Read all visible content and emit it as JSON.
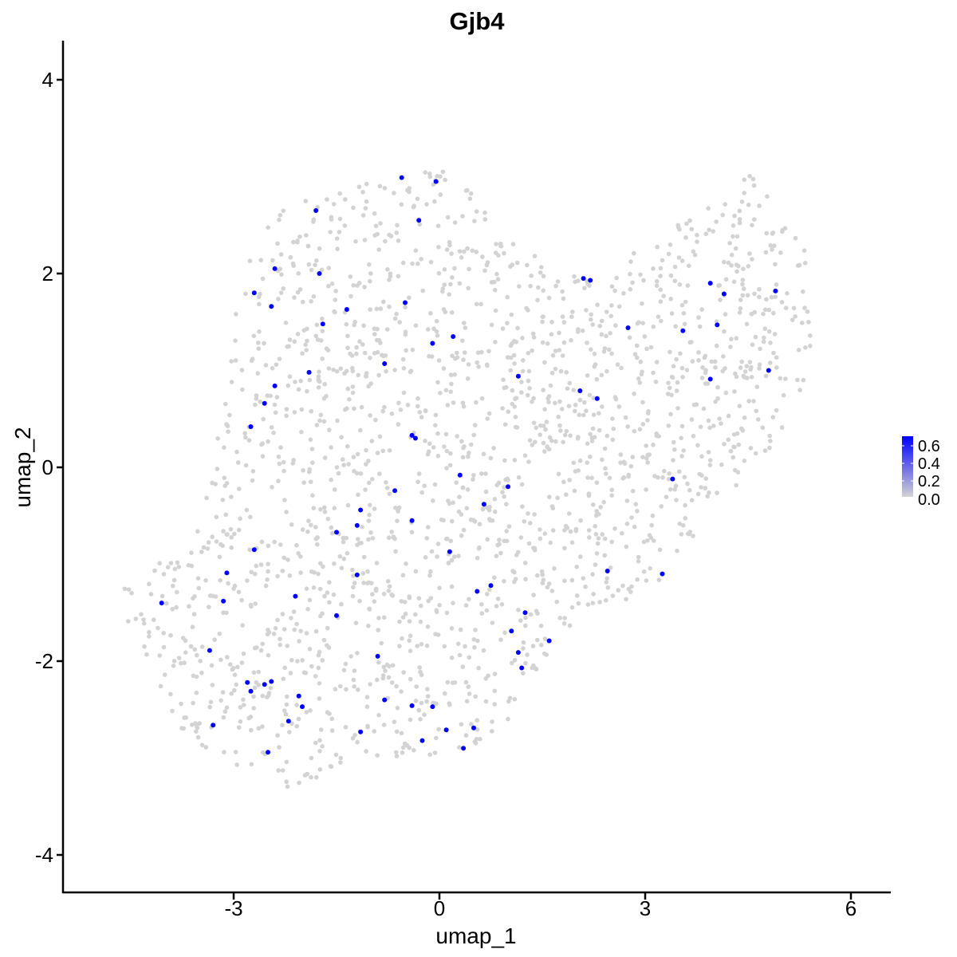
{
  "chart_data": {
    "type": "scatter",
    "title": "Gjb4",
    "xlabel": "umap_1",
    "ylabel": "umap_2",
    "xlim": [
      -5.9,
      6.5
    ],
    "ylim": [
      -4.4,
      4.4
    ],
    "x_ticks": [
      {
        "value": -3,
        "label": "-3"
      },
      {
        "value": 0,
        "label": "0"
      },
      {
        "value": 3,
        "label": "3"
      },
      {
        "value": 6,
        "label": "6"
      }
    ],
    "y_ticks": [
      {
        "value": -4,
        "label": "-4"
      },
      {
        "value": -2,
        "label": "-2"
      },
      {
        "value": 0,
        "label": "0"
      },
      {
        "value": 2,
        "label": "2"
      },
      {
        "value": 4,
        "label": "4"
      }
    ],
    "grid": false,
    "legend": {
      "position": "right",
      "type": "colorbar",
      "labels": [
        "0.6",
        "0.4",
        "0.2",
        "0.0"
      ],
      "range": [
        0.0,
        0.65
      ],
      "low_color": "#d3d3d3",
      "high_color": "#0000ff"
    },
    "background_points_color": "#d3d3d3",
    "background_region": {
      "note_free": true,
      "polygon": [
        [
          -4.7,
          -1.3
        ],
        [
          -4.5,
          -1.8
        ],
        [
          -4.1,
          -2.35
        ],
        [
          -3.6,
          -2.85
        ],
        [
          -3.1,
          -3.05
        ],
        [
          -2.6,
          -3.2
        ],
        [
          -2.2,
          -3.45
        ],
        [
          -1.6,
          -3.1
        ],
        [
          -0.9,
          -3.0
        ],
        [
          0.0,
          -3.0
        ],
        [
          0.5,
          -2.9
        ],
        [
          0.9,
          -2.7
        ],
        [
          1.2,
          -2.4
        ],
        [
          1.5,
          -2.0
        ],
        [
          1.8,
          -1.7
        ],
        [
          2.2,
          -1.5
        ],
        [
          2.6,
          -1.45
        ],
        [
          3.2,
          -1.2
        ],
        [
          3.6,
          -0.85
        ],
        [
          3.9,
          -0.5
        ],
        [
          4.4,
          -0.15
        ],
        [
          4.8,
          0.1
        ],
        [
          5.2,
          0.5
        ],
        [
          5.35,
          0.9
        ],
        [
          5.45,
          1.5
        ],
        [
          5.4,
          2.1
        ],
        [
          5.2,
          2.5
        ],
        [
          4.9,
          2.7
        ],
        [
          4.5,
          3.05
        ],
        [
          4.1,
          2.75
        ],
        [
          3.5,
          2.55
        ],
        [
          3.0,
          2.35
        ],
        [
          2.6,
          2.1
        ],
        [
          2.2,
          1.95
        ],
        [
          1.7,
          2.05
        ],
        [
          1.4,
          2.2
        ],
        [
          1.0,
          2.55
        ],
        [
          0.6,
          2.75
        ],
        [
          0.3,
          2.95
        ],
        [
          0.0,
          3.1
        ],
        [
          -0.5,
          3.0
        ],
        [
          -1.0,
          2.95
        ],
        [
          -1.5,
          2.85
        ],
        [
          -2.1,
          2.75
        ],
        [
          -2.4,
          2.6
        ],
        [
          -2.8,
          2.2
        ],
        [
          -3.0,
          1.7
        ],
        [
          -3.1,
          1.1
        ],
        [
          -3.2,
          0.5
        ],
        [
          -3.3,
          0.0
        ],
        [
          -3.5,
          -0.5
        ],
        [
          -3.9,
          -0.9
        ],
        [
          -4.3,
          -1.1
        ]
      ],
      "count": 1900,
      "seed": 7
    },
    "expressing_points": [
      {
        "x": -0.55,
        "y": 2.99,
        "value": 0.6
      },
      {
        "x": -0.05,
        "y": 2.95,
        "value": 0.6
      },
      {
        "x": -1.8,
        "y": 2.65,
        "value": 0.6
      },
      {
        "x": -0.3,
        "y": 2.55,
        "value": 0.6
      },
      {
        "x": -2.4,
        "y": 2.05,
        "value": 0.6
      },
      {
        "x": -1.75,
        "y": 2.0,
        "value": 0.6
      },
      {
        "x": 2.1,
        "y": 1.95,
        "value": 0.6
      },
      {
        "x": 2.2,
        "y": 1.93,
        "value": 0.6
      },
      {
        "x": 3.95,
        "y": 1.9,
        "value": 0.6
      },
      {
        "x": 4.9,
        "y": 1.82,
        "value": 0.6
      },
      {
        "x": -2.7,
        "y": 1.8,
        "value": 0.6
      },
      {
        "x": 4.15,
        "y": 1.79,
        "value": 0.6
      },
      {
        "x": -0.5,
        "y": 1.7,
        "value": 0.6
      },
      {
        "x": -2.45,
        "y": 1.66,
        "value": 0.6
      },
      {
        "x": -1.35,
        "y": 1.63,
        "value": 0.6
      },
      {
        "x": -1.7,
        "y": 1.48,
        "value": 0.6
      },
      {
        "x": 4.05,
        "y": 1.47,
        "value": 0.6
      },
      {
        "x": 2.75,
        "y": 1.44,
        "value": 0.6
      },
      {
        "x": 3.55,
        "y": 1.41,
        "value": 0.6
      },
      {
        "x": 0.2,
        "y": 1.35,
        "value": 0.6
      },
      {
        "x": -0.1,
        "y": 1.28,
        "value": 0.6
      },
      {
        "x": -0.8,
        "y": 1.07,
        "value": 0.6
      },
      {
        "x": 4.8,
        "y": 1.0,
        "value": 0.6
      },
      {
        "x": -1.9,
        "y": 0.98,
        "value": 0.6
      },
      {
        "x": 1.15,
        "y": 0.94,
        "value": 0.6
      },
      {
        "x": 3.95,
        "y": 0.91,
        "value": 0.6
      },
      {
        "x": -2.4,
        "y": 0.84,
        "value": 0.6
      },
      {
        "x": 2.05,
        "y": 0.79,
        "value": 0.6
      },
      {
        "x": 2.3,
        "y": 0.71,
        "value": 0.6
      },
      {
        "x": -2.55,
        "y": 0.66,
        "value": 0.6
      },
      {
        "x": -2.75,
        "y": 0.42,
        "value": 0.6
      },
      {
        "x": -0.4,
        "y": 0.33,
        "value": 0.6
      },
      {
        "x": -0.35,
        "y": 0.3,
        "value": 0.6
      },
      {
        "x": 0.3,
        "y": -0.08,
        "value": 0.6
      },
      {
        "x": 3.4,
        "y": -0.12,
        "value": 0.6
      },
      {
        "x": 1.0,
        "y": -0.2,
        "value": 0.6
      },
      {
        "x": -0.65,
        "y": -0.24,
        "value": 0.6
      },
      {
        "x": 0.65,
        "y": -0.38,
        "value": 0.6
      },
      {
        "x": -1.15,
        "y": -0.44,
        "value": 0.6
      },
      {
        "x": -0.4,
        "y": -0.55,
        "value": 0.6
      },
      {
        "x": -1.2,
        "y": -0.6,
        "value": 0.6
      },
      {
        "x": -1.5,
        "y": -0.67,
        "value": 0.6
      },
      {
        "x": -2.7,
        "y": -0.85,
        "value": 0.6
      },
      {
        "x": 0.15,
        "y": -0.87,
        "value": 0.6
      },
      {
        "x": 2.45,
        "y": -1.07,
        "value": 0.6
      },
      {
        "x": -3.1,
        "y": -1.09,
        "value": 0.6
      },
      {
        "x": 3.25,
        "y": -1.1,
        "value": 0.6
      },
      {
        "x": -1.2,
        "y": -1.11,
        "value": 0.6
      },
      {
        "x": 0.75,
        "y": -1.22,
        "value": 0.6
      },
      {
        "x": 0.55,
        "y": -1.28,
        "value": 0.6
      },
      {
        "x": -2.1,
        "y": -1.33,
        "value": 0.6
      },
      {
        "x": -3.15,
        "y": -1.38,
        "value": 0.6
      },
      {
        "x": -4.05,
        "y": -1.4,
        "value": 0.6
      },
      {
        "x": 1.25,
        "y": -1.5,
        "value": 0.6
      },
      {
        "x": -1.5,
        "y": -1.53,
        "value": 0.6
      },
      {
        "x": 1.05,
        "y": -1.69,
        "value": 0.6
      },
      {
        "x": 1.6,
        "y": -1.79,
        "value": 0.6
      },
      {
        "x": -3.35,
        "y": -1.89,
        "value": 0.6
      },
      {
        "x": 1.15,
        "y": -1.91,
        "value": 0.6
      },
      {
        "x": -0.9,
        "y": -1.95,
        "value": 0.6
      },
      {
        "x": 1.2,
        "y": -2.07,
        "value": 0.6
      },
      {
        "x": -2.8,
        "y": -2.22,
        "value": 0.6
      },
      {
        "x": -2.45,
        "y": -2.21,
        "value": 0.6
      },
      {
        "x": -2.55,
        "y": -2.24,
        "value": 0.6
      },
      {
        "x": -2.75,
        "y": -2.31,
        "value": 0.6
      },
      {
        "x": -2.05,
        "y": -2.36,
        "value": 0.6
      },
      {
        "x": -0.8,
        "y": -2.4,
        "value": 0.6
      },
      {
        "x": -2.0,
        "y": -2.47,
        "value": 0.6
      },
      {
        "x": -0.4,
        "y": -2.46,
        "value": 0.6
      },
      {
        "x": -0.1,
        "y": -2.47,
        "value": 0.6
      },
      {
        "x": -2.2,
        "y": -2.62,
        "value": 0.6
      },
      {
        "x": -3.3,
        "y": -2.66,
        "value": 0.6
      },
      {
        "x": 0.5,
        "y": -2.69,
        "value": 0.6
      },
      {
        "x": 0.1,
        "y": -2.71,
        "value": 0.6
      },
      {
        "x": -1.15,
        "y": -2.73,
        "value": 0.6
      },
      {
        "x": -0.25,
        "y": -2.82,
        "value": 0.6
      },
      {
        "x": 0.35,
        "y": -2.9,
        "value": 0.6
      },
      {
        "x": -2.5,
        "y": -2.94,
        "value": 0.6
      }
    ]
  }
}
